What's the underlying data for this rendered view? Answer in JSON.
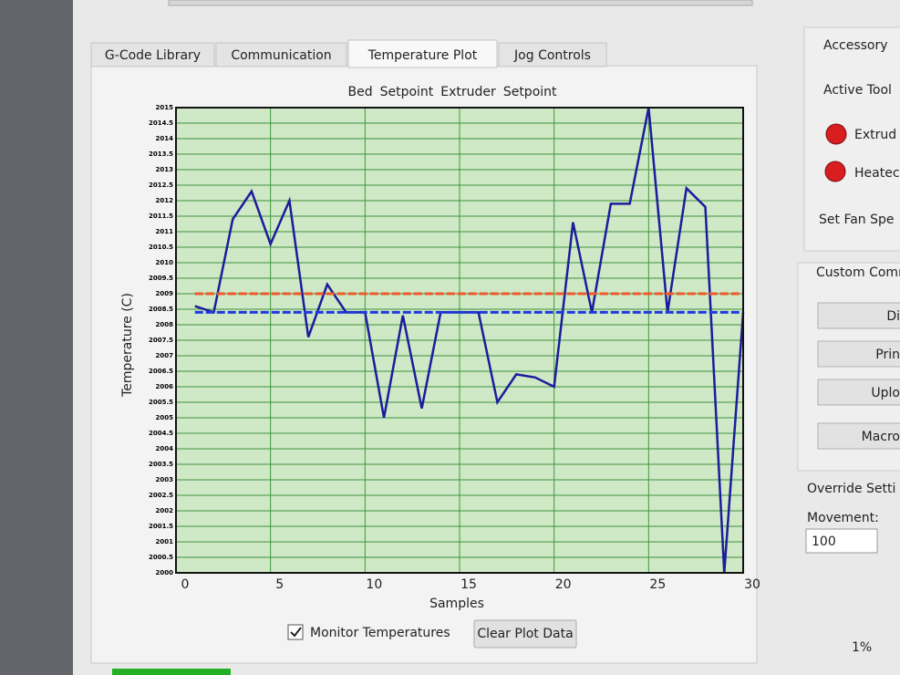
{
  "tabs": [
    "G-Code Library",
    "Communication",
    "Temperature Plot",
    "Jog Controls"
  ],
  "chart_data": {
    "type": "line",
    "xlabel": "Samples",
    "ylabel": "Temperature (C)",
    "x": [
      1,
      2,
      3,
      4,
      5,
      6,
      7,
      8,
      9,
      10,
      11,
      12,
      13,
      14,
      15,
      16,
      17,
      18,
      19,
      20,
      21,
      22,
      23,
      24,
      25,
      26,
      27,
      28,
      29,
      30
    ],
    "series": [
      {
        "name": "Bed",
        "color": "#1c1c9c",
        "style": "solid",
        "values": [
          2008.6,
          2008.4,
          2011.4,
          2012.3,
          2010.6,
          2012.0,
          2007.6,
          2009.3,
          2008.4,
          2008.4,
          2005.0,
          2008.3,
          2005.3,
          2008.4,
          2008.4,
          2008.4,
          2005.5,
          2006.4,
          2006.3,
          2006.0,
          2011.3,
          2008.4,
          2011.9,
          2011.9,
          2015,
          2008.4,
          2012.4,
          2011.8,
          2000,
          2008.4
        ]
      },
      {
        "name": "Setpoint",
        "color": "#1f3ae0",
        "style": "dashed",
        "values": [
          2008.4,
          2008.4,
          2008.4,
          2008.4,
          2008.4,
          2008.4,
          2008.4,
          2008.4,
          2008.4,
          2008.4,
          2008.4,
          2008.4,
          2008.4,
          2008.4,
          2008.4,
          2008.4,
          2008.4,
          2008.4,
          2008.4,
          2008.4,
          2008.4,
          2008.4,
          2008.4,
          2008.4,
          2008.4,
          2008.4,
          2008.4,
          2008.4,
          2008.4,
          2008.4
        ]
      },
      {
        "name": "Extruder",
        "color": "#a8452c",
        "style": "solid",
        "values": [
          null,
          null,
          null,
          null,
          null,
          null,
          null,
          null,
          null,
          null,
          null,
          null,
          null,
          null,
          null,
          null,
          null,
          null,
          null,
          null,
          null,
          null,
          null,
          null,
          null,
          null,
          null,
          null,
          null,
          null
        ]
      },
      {
        "name": "Setpoint",
        "color": "#f2582a",
        "style": "dashed",
        "values": [
          2009,
          2009,
          2009,
          2009,
          2009,
          2009,
          2009,
          2009,
          2009,
          2009,
          2009,
          2009,
          2009,
          2009,
          2009,
          2009,
          2009,
          2009,
          2009,
          2009,
          2009,
          2009,
          2009,
          2009,
          2009,
          2009,
          2009,
          2009,
          2009,
          2009
        ]
      }
    ],
    "xlim": [
      0,
      30
    ],
    "xticks": [
      0,
      5,
      10,
      15,
      20,
      25,
      30
    ],
    "ylim": [
      2000,
      2015
    ],
    "yticks": [
      2000,
      2000.5,
      2001,
      2001.5,
      2002,
      2002.5,
      2003,
      2003.5,
      2004,
      2004.5,
      2005,
      2005.5,
      2006,
      2006.5,
      2007,
      2007.5,
      2008,
      2008.5,
      2009,
      2009.5,
      2010,
      2010.5,
      2011,
      2011.5,
      2012,
      2012.5,
      2013,
      2013.5,
      2014,
      2014.5,
      2015
    ],
    "grid": true
  },
  "controls": {
    "monitor": "Monitor Temperatures",
    "clear": "Clear Plot Data"
  },
  "sidebar": {
    "accessory": "Accessory",
    "active_tool": "Active Tool",
    "extruder": "Extrud",
    "heated": "Heatec",
    "fan": "Set Fan Spe",
    "custom": "Custom Comm",
    "buttons": [
      "Di",
      "Prin",
      "Uplo",
      "Macro"
    ],
    "override": "Override Setti",
    "movement": "Movement:",
    "movement_value": "100",
    "percent": "1%"
  }
}
